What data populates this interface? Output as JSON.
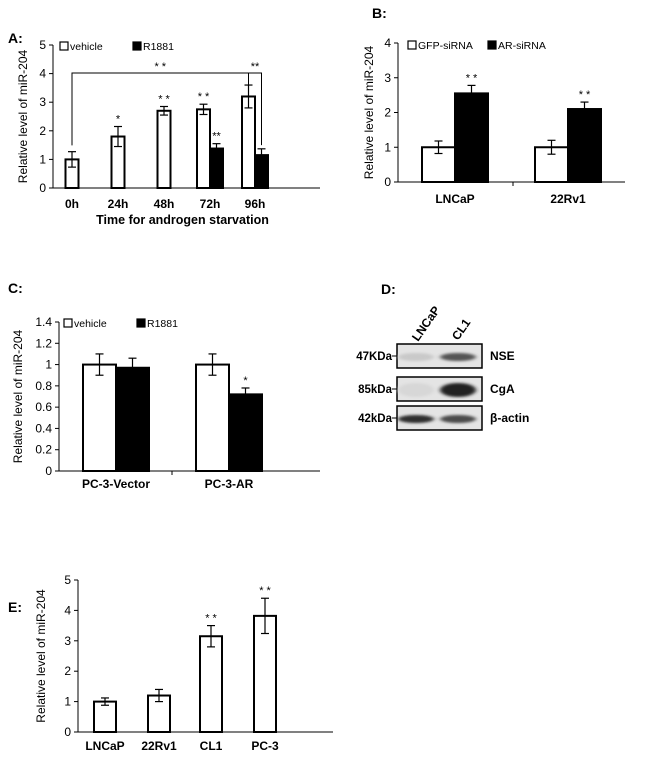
{
  "panels": {
    "A": "A:",
    "B": "B:",
    "C": "C:",
    "D": "D:",
    "E": "E:"
  },
  "chart_data": [
    {
      "id": "A",
      "type": "bar",
      "categories": [
        "0h",
        "24h",
        "48h",
        "72h",
        "96h"
      ],
      "xlabel": "Time for androgen starvation",
      "ylabel": "Relative level of miR-204",
      "ylim": [
        0,
        5
      ],
      "yticks": [
        "0",
        "1",
        "2",
        "3",
        "4",
        "5"
      ],
      "grid": false,
      "legend": "top-left",
      "series": [
        {
          "name": "vehicle",
          "color": "#ffffff",
          "values": [
            1.0,
            1.8,
            2.7,
            2.75,
            3.2
          ],
          "errors": [
            0.27,
            0.35,
            0.15,
            0.18,
            0.4
          ],
          "stars": [
            "",
            "*",
            "* *",
            "* *",
            ""
          ]
        },
        {
          "name": "R1881",
          "color": "#000000",
          "values": [
            null,
            null,
            null,
            1.38,
            1.15
          ],
          "errors": [
            null,
            null,
            null,
            0.17,
            0.22
          ],
          "stars": [
            "",
            "",
            "",
            "**",
            ""
          ]
        }
      ],
      "brackets": [
        {
          "from": "0h vehicle",
          "to": "96h vehicle",
          "label": "* *"
        },
        {
          "from": "96h vehicle",
          "to": "96h R1881",
          "label": "**"
        }
      ]
    },
    {
      "id": "B",
      "type": "bar",
      "categories": [
        "LNCaP",
        "22Rv1"
      ],
      "ylabel": "Relative level of miR-204",
      "ylim": [
        0,
        4
      ],
      "yticks": [
        "0",
        "1",
        "2",
        "3",
        "4"
      ],
      "grid": false,
      "legend": "top",
      "series": [
        {
          "name": "GFP-siRNA",
          "color": "#ffffff",
          "values": [
            1.0,
            1.0
          ],
          "errors": [
            0.18,
            0.2
          ],
          "stars": [
            "",
            ""
          ]
        },
        {
          "name": "AR-siRNA",
          "color": "#000000",
          "values": [
            2.55,
            2.1
          ],
          "errors": [
            0.23,
            0.2
          ],
          "stars": [
            "* *",
            "* *"
          ]
        }
      ]
    },
    {
      "id": "C",
      "type": "bar",
      "categories": [
        "PC-3-Vector",
        "PC-3-AR"
      ],
      "ylabel": "Relative level of miR-204",
      "ylim": [
        0,
        1.4
      ],
      "yticks": [
        "0",
        "0.2",
        "0.4",
        "0.6",
        "0.8",
        "1",
        "1.2",
        "1.4"
      ],
      "grid": false,
      "legend": "top-left",
      "series": [
        {
          "name": "vehicle",
          "color": "#ffffff",
          "values": [
            1.0,
            1.0
          ],
          "errors": [
            0.1,
            0.1
          ],
          "stars": [
            "",
            ""
          ]
        },
        {
          "name": "R1881",
          "color": "#000000",
          "values": [
            0.97,
            0.72
          ],
          "errors": [
            0.09,
            0.06
          ],
          "stars": [
            "",
            "*"
          ]
        }
      ]
    },
    {
      "id": "E",
      "type": "bar",
      "categories": [
        "LNCaP",
        "22Rv1",
        "CL1",
        "PC-3"
      ],
      "ylabel": "Relative level of miR-204",
      "ylim": [
        0,
        5
      ],
      "yticks": [
        "0",
        "1",
        "2",
        "3",
        "4",
        "5"
      ],
      "grid": false,
      "series": [
        {
          "color": "#ffffff",
          "values": [
            1.0,
            1.2,
            3.15,
            3.82
          ],
          "errors": [
            0.12,
            0.2,
            0.35,
            0.58
          ],
          "stars": [
            "",
            "",
            "* *",
            "* *"
          ]
        }
      ]
    }
  ],
  "blot": {
    "lanes": [
      "LNCaP",
      "CL1"
    ],
    "rows": [
      {
        "marker": "47KDa",
        "protein": "NSE",
        "intensity": [
          0.12,
          0.7
        ]
      },
      {
        "marker": "85kDa",
        "protein": "CgA",
        "intensity": [
          0.05,
          0.95
        ]
      },
      {
        "marker": "42kDa",
        "protein": "β-actin",
        "intensity": [
          0.9,
          0.75
        ]
      }
    ]
  }
}
